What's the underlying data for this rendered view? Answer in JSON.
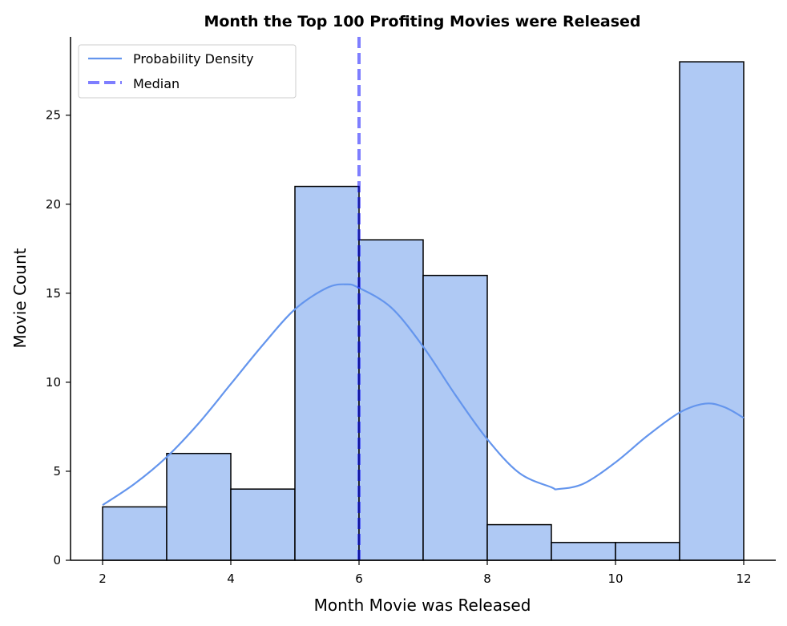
{
  "chart_data": {
    "type": "bar",
    "title": "Month the Top 100 Profiting Movies were Released",
    "xlabel": "Month Movie was Released",
    "ylabel": "Movie Count",
    "xlim": [
      1.5,
      12.5
    ],
    "ylim": [
      0,
      29.4
    ],
    "xticks": [
      2,
      4,
      6,
      8,
      10,
      12
    ],
    "yticks": [
      0,
      5,
      10,
      15,
      20,
      25
    ],
    "grid": false,
    "legend_position": "top-left",
    "bins": [
      {
        "x0": 2,
        "x1": 3,
        "count": 3
      },
      {
        "x0": 3,
        "x1": 4,
        "count": 6
      },
      {
        "x0": 4,
        "x1": 5,
        "count": 4
      },
      {
        "x0": 5,
        "x1": 6,
        "count": 21
      },
      {
        "x0": 6,
        "x1": 7,
        "count": 18
      },
      {
        "x0": 7,
        "x1": 8,
        "count": 16
      },
      {
        "x0": 8,
        "x1": 9,
        "count": 2
      },
      {
        "x0": 9,
        "x1": 10,
        "count": 1
      },
      {
        "x0": 10,
        "x1": 11,
        "count": 1
      },
      {
        "x0": 11,
        "x1": 12,
        "count": 28
      }
    ],
    "density_curve": {
      "name": "Probability Density",
      "x": [
        2,
        2.5,
        3,
        3.5,
        4,
        4.5,
        5,
        5.5,
        5.8,
        6,
        6.5,
        7,
        7.5,
        8,
        8.5,
        9,
        9.1,
        9.5,
        10,
        10.5,
        11,
        11.4,
        11.7,
        12
      ],
      "y": [
        3.1,
        4.3,
        5.8,
        7.7,
        9.9,
        12.1,
        14.1,
        15.3,
        15.5,
        15.3,
        14.2,
        12.0,
        9.3,
        6.8,
        4.9,
        4.1,
        4.0,
        4.3,
        5.5,
        7.0,
        8.3,
        8.8,
        8.6,
        8.0
      ]
    },
    "median": {
      "name": "Median",
      "value": 6
    },
    "colors": {
      "bar_fill": "#afc9f4",
      "bar_edge": "#000000",
      "density": "#6495ed",
      "median": "#0000ff"
    }
  }
}
